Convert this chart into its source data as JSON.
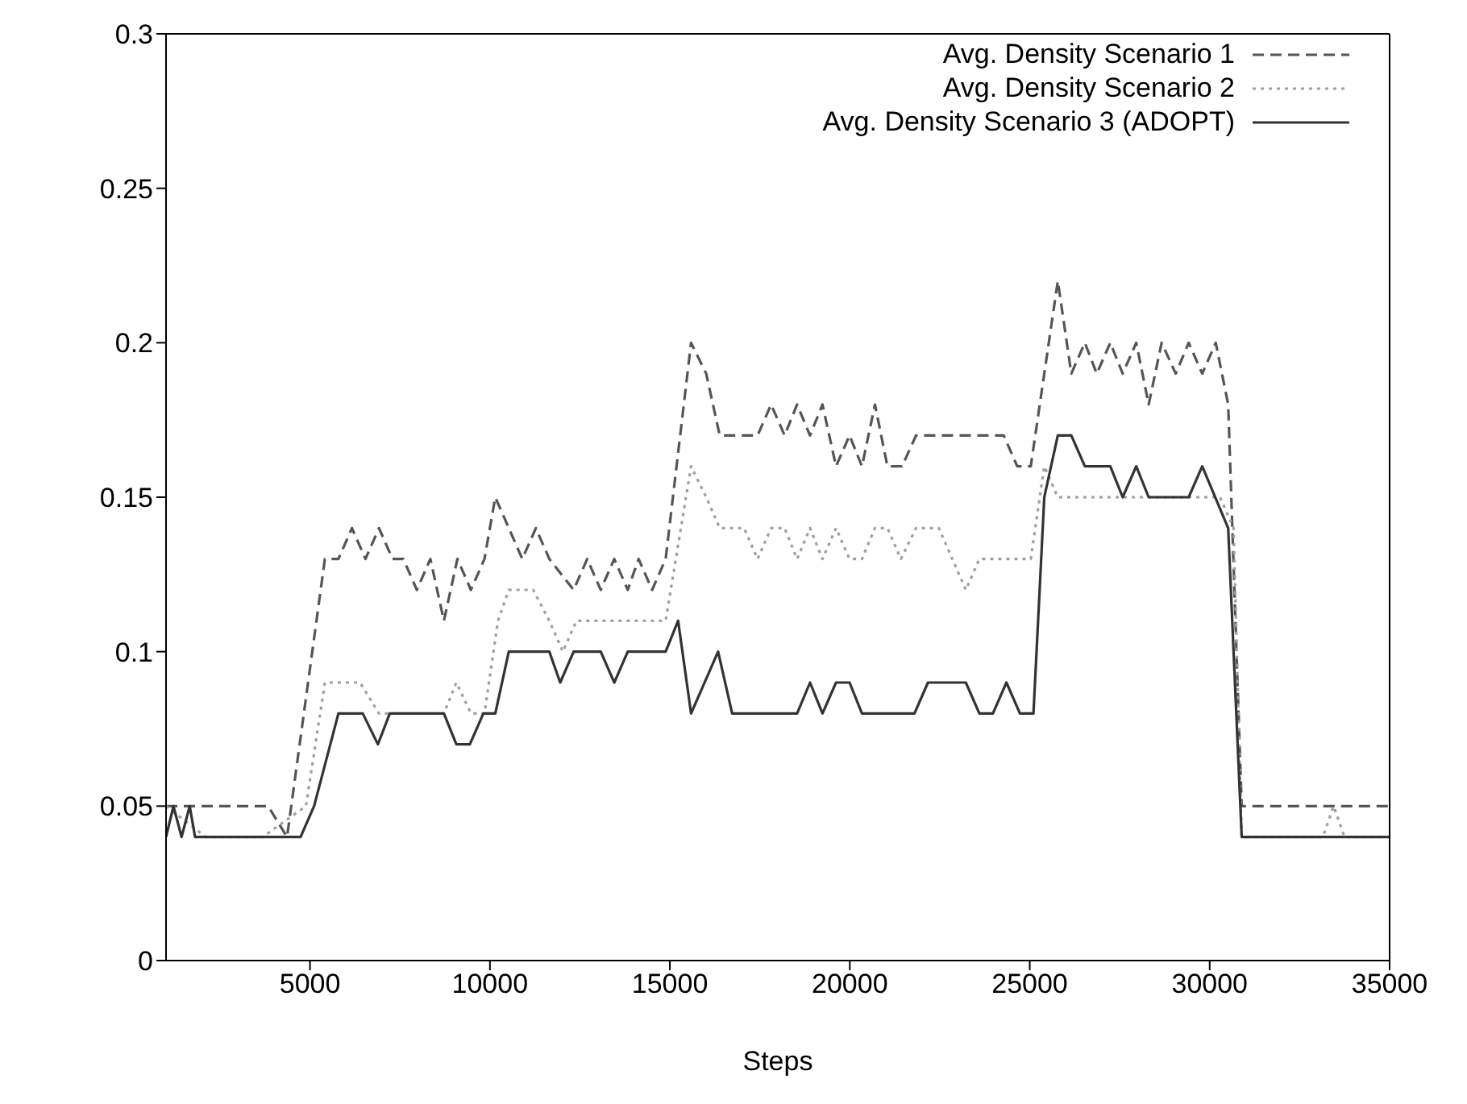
{
  "chart_data": {
    "type": "line",
    "xlabel": "Steps",
    "xlim": [
      1000,
      35000
    ],
    "xticks": [
      5000,
      10000,
      15000,
      20000,
      25000,
      30000,
      35000
    ],
    "ylim": [
      0,
      0.3
    ],
    "yticks": [
      0,
      0.05,
      0.1,
      0.15,
      0.2,
      0.25,
      0.3
    ],
    "legend": "top right",
    "series": [
      {
        "name": "Avg. Density Scenario 1",
        "color": "#555555",
        "line_style": "dashed",
        "x": [
          1000,
          3836,
          4362,
          5414,
          5790,
          6166,
          6541,
          6917,
          7293,
          7594,
          7969,
          8345,
          8721,
          9097,
          9472,
          9848,
          10149,
          10900,
          11276,
          11651,
          12327,
          12703,
          13079,
          13455,
          13830,
          14131,
          14507,
          14883,
          15589,
          16010,
          16385,
          17438,
          17813,
          18189,
          18535,
          18895,
          19241,
          19617,
          19993,
          20338,
          20699,
          21045,
          21451,
          21841,
          22924,
          24277,
          24652,
          25028,
          25780,
          26155,
          26531,
          26862,
          27238,
          27583,
          27959,
          28305,
          28665,
          29056,
          29417,
          29793,
          30168,
          30514,
          30890,
          35000
        ],
        "values": [
          0.05,
          0.05,
          0.04,
          0.13,
          0.13,
          0.14,
          0.13,
          0.14,
          0.13,
          0.13,
          0.12,
          0.13,
          0.11,
          0.13,
          0.12,
          0.13,
          0.15,
          0.13,
          0.14,
          0.13,
          0.12,
          0.13,
          0.12,
          0.13,
          0.12,
          0.13,
          0.12,
          0.13,
          0.2,
          0.19,
          0.17,
          0.17,
          0.18,
          0.17,
          0.18,
          0.17,
          0.18,
          0.16,
          0.17,
          0.16,
          0.18,
          0.16,
          0.16,
          0.17,
          0.17,
          0.17,
          0.16,
          0.16,
          0.22,
          0.19,
          0.2,
          0.19,
          0.2,
          0.19,
          0.2,
          0.18,
          0.2,
          0.19,
          0.2,
          0.19,
          0.2,
          0.18,
          0.05,
          0.05
        ]
      },
      {
        "name": "Avg. Density Scenario 2",
        "color": "#a0a0a0",
        "line_style": "dotted",
        "x": [
          1000,
          2108,
          3686,
          4888,
          5414,
          6391,
          6917,
          8721,
          9067,
          9472,
          9848,
          10224,
          10524,
          11201,
          11651,
          12027,
          12403,
          14883,
          15589,
          16010,
          16385,
          17062,
          17438,
          17813,
          18189,
          18535,
          18895,
          19241,
          19617,
          19993,
          20338,
          20699,
          21045,
          21421,
          21841,
          22473,
          22848,
          23225,
          23600,
          25028,
          25404,
          25780,
          30288,
          30664,
          30890,
          33144,
          33445,
          33746,
          35000
        ],
        "values": [
          0.05,
          0.04,
          0.04,
          0.05,
          0.09,
          0.09,
          0.08,
          0.08,
          0.09,
          0.08,
          0.08,
          0.11,
          0.12,
          0.12,
          0.11,
          0.1,
          0.11,
          0.11,
          0.16,
          0.15,
          0.14,
          0.14,
          0.13,
          0.14,
          0.14,
          0.13,
          0.14,
          0.13,
          0.14,
          0.13,
          0.13,
          0.14,
          0.14,
          0.13,
          0.14,
          0.14,
          0.13,
          0.12,
          0.13,
          0.13,
          0.16,
          0.15,
          0.15,
          0.14,
          0.04,
          0.04,
          0.05,
          0.04,
          0.04
        ]
      },
      {
        "name": "Avg. Density Scenario 3 (ADOPT)",
        "color": "#333333",
        "line_style": "solid",
        "x": [
          1000,
          1206,
          1431,
          1657,
          1807,
          4738,
          5114,
          5790,
          6466,
          6887,
          7218,
          8721,
          9067,
          9442,
          9818,
          10149,
          10524,
          11651,
          11952,
          12327,
          13079,
          13455,
          13830,
          14883,
          15229,
          15589,
          16340,
          16731,
          18535,
          18895,
          19241,
          19617,
          19993,
          20338,
          21796,
          22172,
          23224,
          23600,
          23976,
          24352,
          24728,
          25103,
          25404,
          25780,
          26155,
          26531,
          27238,
          27583,
          27959,
          28305,
          29417,
          29793,
          30514,
          30890,
          35000
        ],
        "values": [
          0.04,
          0.05,
          0.04,
          0.05,
          0.04,
          0.04,
          0.05,
          0.08,
          0.08,
          0.07,
          0.08,
          0.08,
          0.07,
          0.07,
          0.08,
          0.08,
          0.1,
          0.1,
          0.09,
          0.1,
          0.1,
          0.09,
          0.1,
          0.1,
          0.11,
          0.08,
          0.1,
          0.08,
          0.08,
          0.09,
          0.08,
          0.09,
          0.09,
          0.08,
          0.08,
          0.09,
          0.09,
          0.08,
          0.08,
          0.09,
          0.08,
          0.08,
          0.15,
          0.17,
          0.17,
          0.16,
          0.16,
          0.15,
          0.16,
          0.15,
          0.15,
          0.16,
          0.14,
          0.04,
          0.04
        ]
      }
    ]
  }
}
